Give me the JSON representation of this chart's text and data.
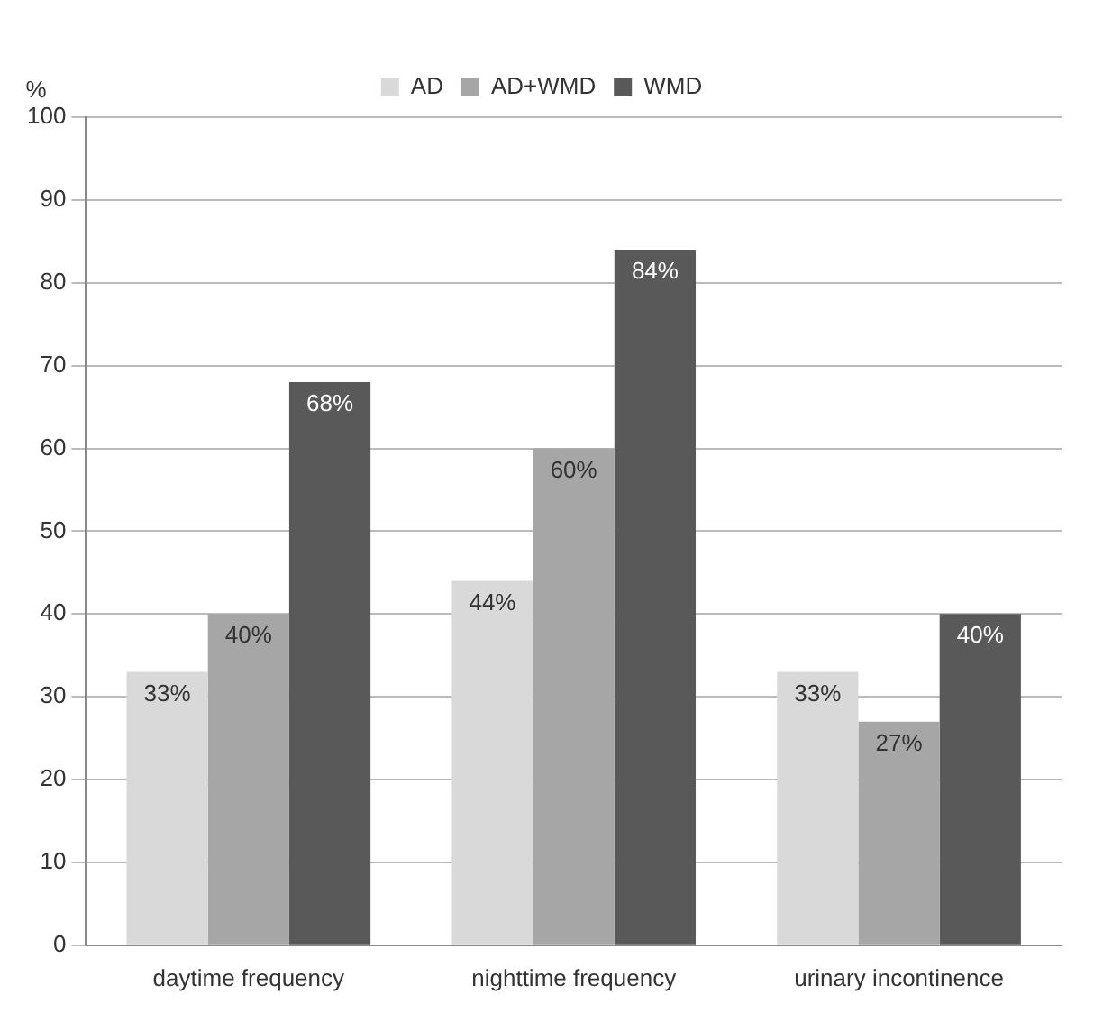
{
  "chart_data": {
    "type": "bar",
    "ylabel": "%",
    "categories": [
      "daytime frequency",
      "nighttime frequency",
      "urinary incontinence"
    ],
    "series": [
      {
        "name": "AD",
        "color": "#d9d9d9",
        "values": [
          33,
          44,
          33
        ],
        "value_labels": [
          "33%",
          "44%",
          "33%"
        ]
      },
      {
        "name": "AD+WMD",
        "color": "#a6a6a6",
        "values": [
          40,
          60,
          27
        ],
        "value_labels": [
          "40%",
          "60%",
          "27%"
        ]
      },
      {
        "name": "WMD",
        "color": "#595959",
        "values": [
          68,
          84,
          40
        ],
        "value_labels": [
          "68%",
          "84%",
          "40%"
        ]
      }
    ],
    "ylim": [
      0,
      100
    ],
    "yticks": [
      0,
      10,
      20,
      30,
      40,
      50,
      60,
      70,
      80,
      90,
      100
    ],
    "grid": "y",
    "legend": "top"
  }
}
